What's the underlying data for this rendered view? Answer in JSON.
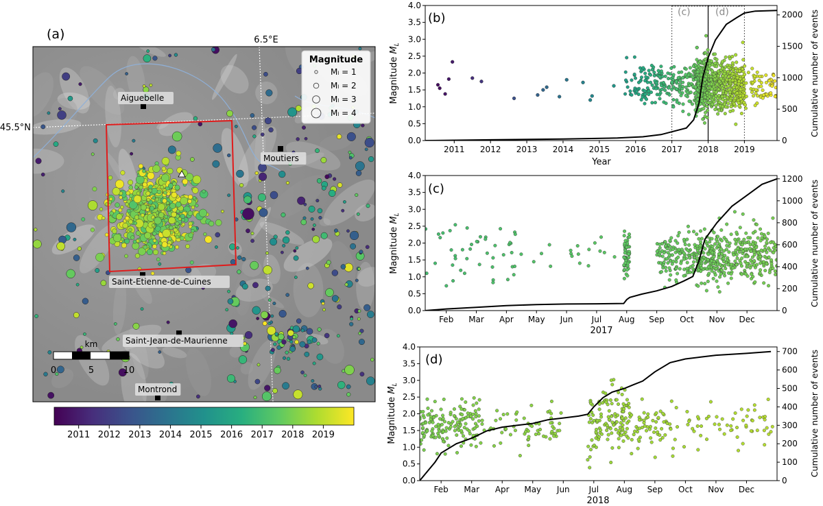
{
  "chart_data": [
    {
      "panel": "(a)",
      "type": "scatter",
      "subtype": "seismicity map",
      "meridian_label": "6.5°E",
      "parallel_label": "45.5°N",
      "towns": [
        {
          "name": "Aiguebelle"
        },
        {
          "name": "Moutiers"
        },
        {
          "name": "Saint-Etienne-de-Cuines"
        },
        {
          "name": "Saint-Jean-de-Maurienne"
        },
        {
          "name": "Montrond"
        }
      ],
      "legend": {
        "title": "Magnitude",
        "entries": [
          "M_L = 1",
          "M_L = 2",
          "M_L = 3",
          "M_L = 4"
        ],
        "magnitudes": [
          1,
          2,
          3,
          4
        ],
        "placement": "top-right"
      },
      "scalebar": {
        "unit": "km",
        "ticks": [
          "0",
          "5",
          "10"
        ]
      },
      "colorbar": {
        "ticks": [
          "2011",
          "2012",
          "2013",
          "2014",
          "2015",
          "2016",
          "2017",
          "2018",
          "2019"
        ],
        "range": [
          2010.2,
          2020.0
        ],
        "colormap": "viridis"
      },
      "box_color": "#e01b1b",
      "station_marker": "white-triangle"
    },
    {
      "panel": "(b)",
      "type": "scatter",
      "xlabel": "Year",
      "ylabel": "Magnitude M_L",
      "y2label": "Cumulative number of events",
      "xlim": [
        2010.2,
        2019.9
      ],
      "ylim": [
        0,
        4.0
      ],
      "y2lim": [
        0,
        2150
      ],
      "xticks": [
        "2011",
        "2012",
        "2013",
        "2014",
        "2015",
        "2016",
        "2017",
        "2018",
        "2019"
      ],
      "yticks": [
        "0.0",
        "0.5",
        "1.0",
        "1.5",
        "2.0",
        "2.5",
        "3.0",
        "3.5",
        "4.0"
      ],
      "y2ticks": [
        "0",
        "500",
        "1000",
        "1500",
        "2000"
      ],
      "zoom_labels": [
        "(c)",
        "(d)"
      ],
      "zoom_windows": [
        [
          2017.0,
          2018.0
        ],
        [
          2018.0,
          2019.0
        ]
      ],
      "series": [
        {
          "kind": "points",
          "x": [
            2010.55,
            2010.6,
            2010.75,
            2010.85,
            2010.95,
            2011.5,
            2011.75,
            2012.65,
            2013.3,
            2013.45,
            2013.55,
            2013.9,
            2014.1,
            2014.55,
            2014.75,
            2014.8,
            2015.4
          ],
          "y": [
            1.65,
            1.55,
            1.38,
            1.82,
            2.33,
            1.85,
            1.75,
            1.25,
            1.35,
            1.5,
            1.58,
            1.3,
            1.8,
            1.72,
            1.2,
            1.32,
            1.62
          ]
        },
        {
          "kind": "cumulative",
          "x": [
            2010.2,
            2012.0,
            2014.0,
            2015.5,
            2016.2,
            2016.7,
            2017.0,
            2017.4,
            2017.6,
            2017.75,
            2017.85,
            2018.0,
            2018.2,
            2018.5,
            2018.8,
            2019.0,
            2019.3,
            2019.9
          ],
          "y": [
            0,
            12,
            25,
            40,
            60,
            95,
            140,
            200,
            330,
            600,
            1000,
            1320,
            1600,
            1850,
            1960,
            2030,
            2060,
            2070
          ]
        }
      ]
    },
    {
      "panel": "(c)",
      "type": "scatter",
      "xlabel": "2017",
      "ylabel": "Magnitude M_L",
      "y2label": "Cumulative number of events",
      "xlim": [
        0.3,
        12.0
      ],
      "ylim": [
        0,
        4.0
      ],
      "y2lim": [
        0,
        1230
      ],
      "xticks": [
        "Feb",
        "Mar",
        "Apr",
        "May",
        "Jun",
        "Jul",
        "Aug",
        "Sep",
        "Oct",
        "Nov",
        "Dec"
      ],
      "yticks": [
        "0.0",
        "0.5",
        "1.0",
        "1.5",
        "2.0",
        "2.5",
        "3.0",
        "3.5",
        "4.0"
      ],
      "y2ticks": [
        "0",
        "200",
        "400",
        "600",
        "800",
        "1000",
        "1200"
      ],
      "series": [
        {
          "kind": "cumulative",
          "x": [
            0.3,
            1.0,
            2.0,
            3.0,
            4.0,
            5.0,
            6.0,
            6.9,
            7.0,
            7.1,
            7.5,
            8.0,
            8.5,
            8.9,
            9.2,
            9.4,
            9.6,
            10.0,
            10.5,
            11.0,
            11.5,
            12.0
          ],
          "y": [
            0,
            15,
            30,
            45,
            55,
            60,
            62,
            65,
            100,
            120,
            150,
            180,
            220,
            270,
            310,
            450,
            650,
            800,
            950,
            1050,
            1150,
            1200
          ]
        }
      ]
    },
    {
      "panel": "(d)",
      "type": "scatter",
      "xlabel": "2018",
      "ylabel": "Magnitude M_L",
      "y2label": "Cumulative number of events",
      "xlim": [
        0.3,
        12.0
      ],
      "ylim": [
        0,
        4.0
      ],
      "y2lim": [
        0,
        725
      ],
      "xticks": [
        "Feb",
        "Mar",
        "Apr",
        "May",
        "Jun",
        "Jul",
        "Aug",
        "Sep",
        "Oct",
        "Nov",
        "Dec"
      ],
      "yticks": [
        "0.0",
        "0.5",
        "1.0",
        "1.5",
        "2.0",
        "2.5",
        "3.0",
        "3.5",
        "4.0"
      ],
      "y2ticks": [
        "0",
        "100",
        "200",
        "300",
        "400",
        "500",
        "600",
        "700"
      ],
      "series": [
        {
          "kind": "cumulative",
          "x": [
            0.3,
            0.5,
            0.8,
            1.0,
            1.5,
            2.0,
            2.5,
            3.0,
            3.5,
            4.0,
            4.5,
            5.0,
            5.5,
            5.8,
            6.0,
            6.3,
            6.6,
            7.0,
            7.3,
            7.6,
            8.0,
            8.5,
            9.0,
            9.5,
            10.0,
            11.0,
            11.8
          ],
          "y": [
            0,
            40,
            100,
            150,
            200,
            230,
            270,
            290,
            300,
            310,
            330,
            340,
            350,
            360,
            400,
            450,
            480,
            500,
            520,
            540,
            590,
            640,
            660,
            670,
            680,
            690,
            700
          ]
        }
      ]
    }
  ]
}
